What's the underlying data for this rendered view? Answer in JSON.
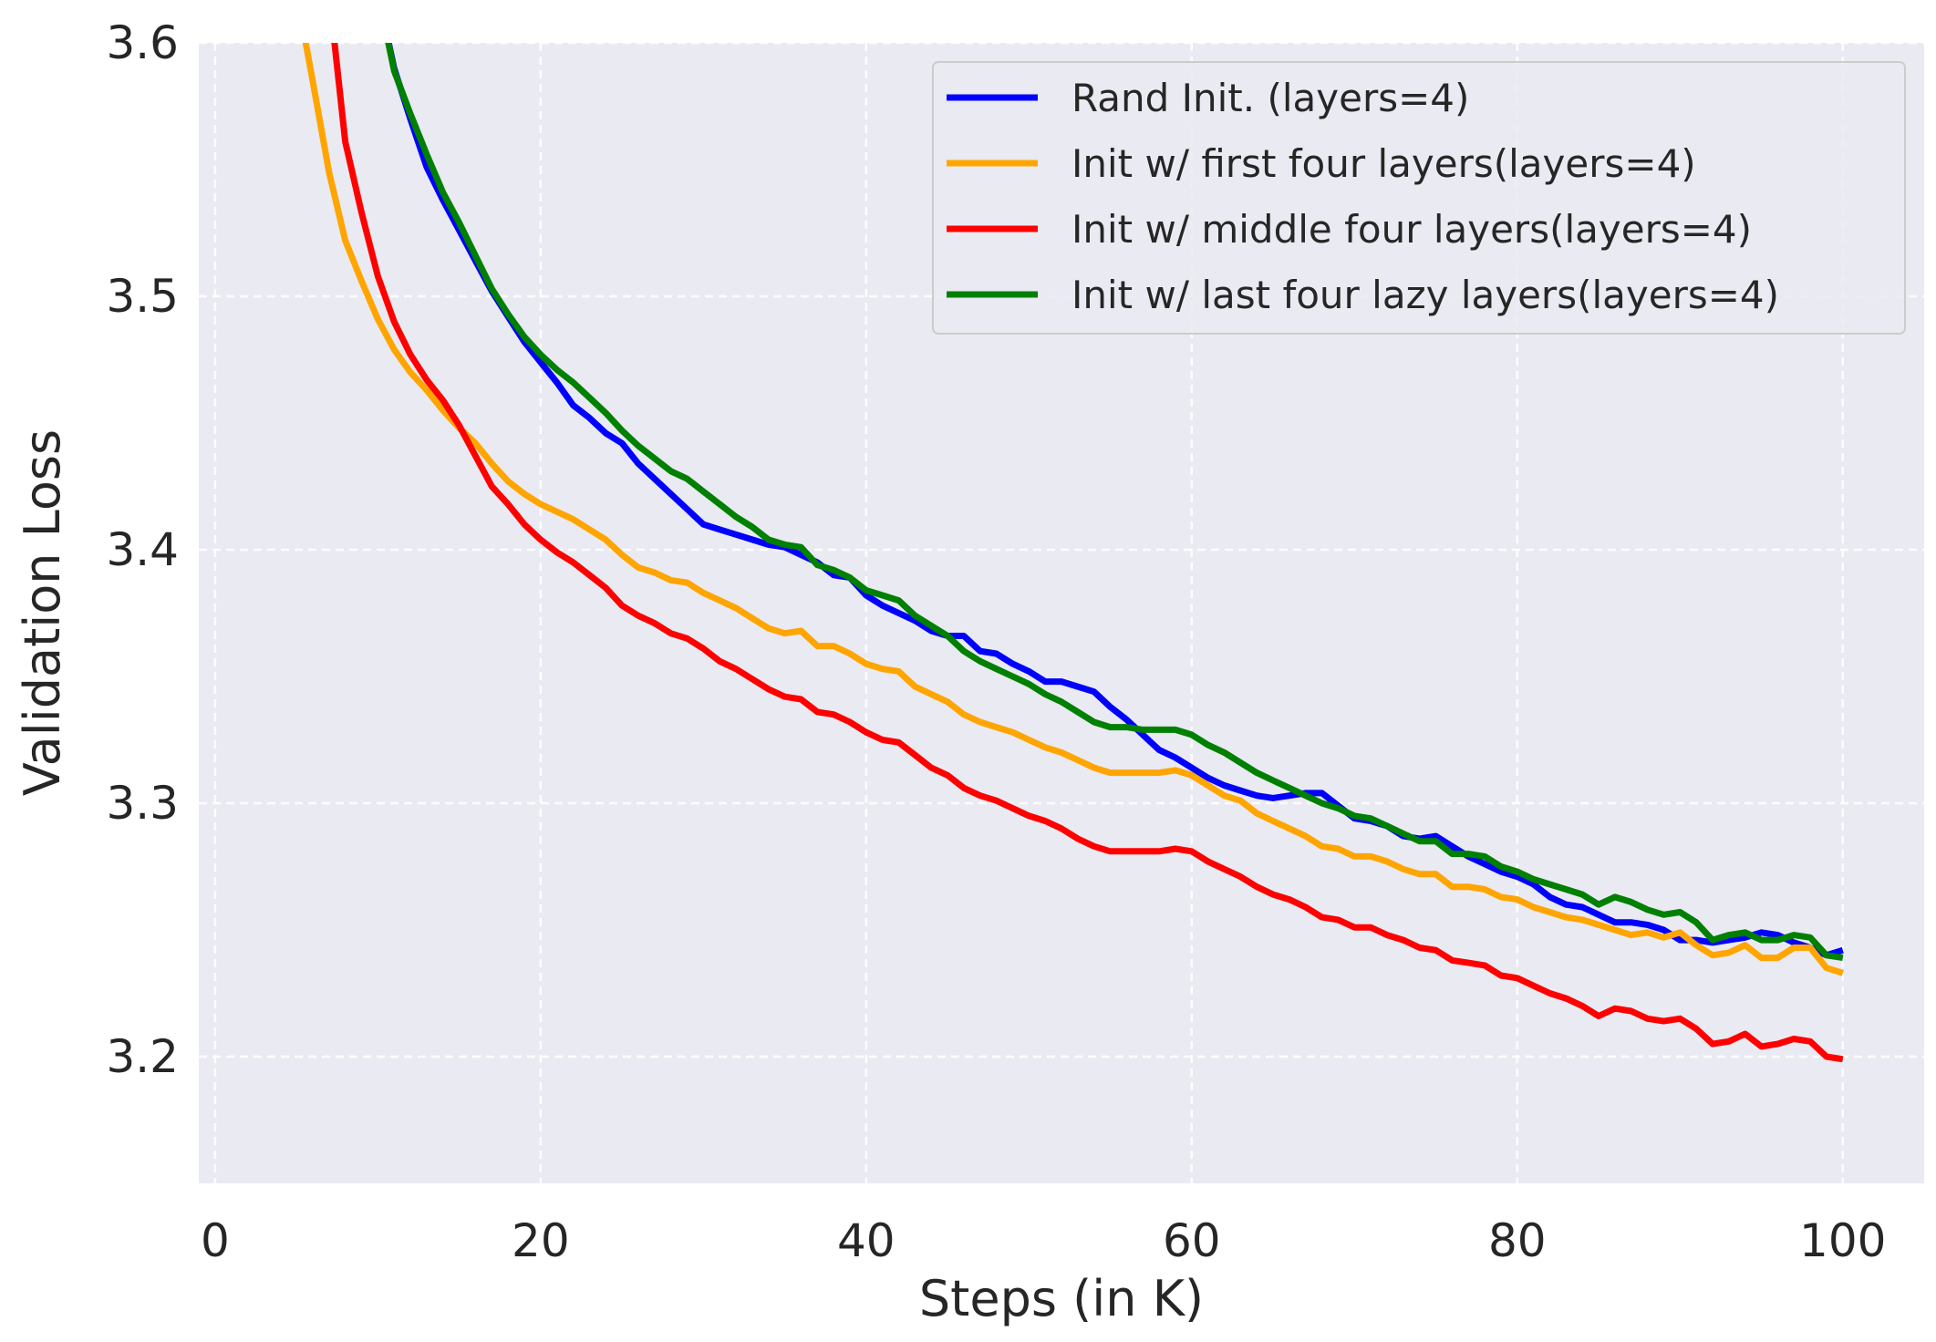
{
  "chart_data": {
    "type": "line",
    "xlabel": "Steps (in K)",
    "ylabel": "Validation Loss",
    "xlim": [
      -1,
      105
    ],
    "ylim": [
      3.15,
      3.6
    ],
    "xticks": [
      0,
      20,
      40,
      60,
      80,
      100
    ],
    "xtick_labels": [
      "0",
      "20",
      "40",
      "60",
      "80",
      "100"
    ],
    "yticks": [
      3.2,
      3.3,
      3.4,
      3.5,
      3.6
    ],
    "ytick_labels": [
      "3.2",
      "3.3",
      "3.4",
      "3.5",
      "3.6"
    ],
    "grid": true,
    "legend_position": "top-right",
    "background_color": "#eaeaf2",
    "series": [
      {
        "name": "Rand Init. (layers=4)",
        "color": "#0000ff",
        "x": [
          10,
          11,
          12,
          13,
          14,
          15,
          16,
          17,
          18,
          19,
          20,
          21,
          22,
          23,
          24,
          25,
          26,
          27,
          28,
          29,
          30,
          31,
          32,
          33,
          34,
          35,
          36,
          37,
          38,
          39,
          40,
          41,
          42,
          43,
          44,
          45,
          46,
          47,
          48,
          49,
          50,
          51,
          52,
          53,
          54,
          55,
          56,
          57,
          58,
          59,
          60,
          61,
          62,
          63,
          64,
          65,
          66,
          67,
          68,
          69,
          70,
          71,
          72,
          73,
          74,
          75,
          76,
          77,
          78,
          79,
          80,
          81,
          82,
          83,
          84,
          85,
          86,
          87,
          88,
          89,
          90,
          91,
          92,
          93,
          94,
          95,
          96,
          97,
          98,
          99,
          100
        ],
        "y": [
          3.62,
          3.59,
          3.57,
          3.551,
          3.538,
          3.526,
          3.514,
          3.502,
          3.492,
          3.482,
          3.474,
          3.466,
          3.457,
          3.452,
          3.446,
          3.442,
          3.434,
          3.428,
          3.422,
          3.416,
          3.41,
          3.408,
          3.406,
          3.404,
          3.402,
          3.401,
          3.398,
          3.395,
          3.39,
          3.389,
          3.382,
          3.378,
          3.375,
          3.372,
          3.368,
          3.366,
          3.366,
          3.36,
          3.359,
          3.355,
          3.352,
          3.348,
          3.348,
          3.346,
          3.344,
          3.338,
          3.333,
          3.327,
          3.321,
          3.318,
          3.314,
          3.31,
          3.307,
          3.305,
          3.303,
          3.302,
          3.303,
          3.304,
          3.304,
          3.299,
          3.294,
          3.293,
          3.291,
          3.287,
          3.286,
          3.287,
          3.283,
          3.279,
          3.276,
          3.273,
          3.271,
          3.268,
          3.263,
          3.26,
          3.259,
          3.256,
          3.253,
          3.253,
          3.252,
          3.25,
          3.246,
          3.246,
          3.245,
          3.246,
          3.247,
          3.249,
          3.248,
          3.245,
          3.243,
          3.24,
          3.242
        ]
      },
      {
        "name": "Init w/ first four layers(layers=4)",
        "color": "#ffa500",
        "x": [
          5,
          6,
          7,
          8,
          9,
          10,
          11,
          12,
          13,
          14,
          15,
          16,
          17,
          18,
          19,
          20,
          21,
          22,
          23,
          24,
          25,
          26,
          27,
          28,
          29,
          30,
          31,
          32,
          33,
          34,
          35,
          36,
          37,
          38,
          39,
          40,
          41,
          42,
          43,
          44,
          45,
          46,
          47,
          48,
          49,
          50,
          51,
          52,
          53,
          54,
          55,
          56,
          57,
          58,
          59,
          60,
          61,
          62,
          63,
          64,
          65,
          66,
          67,
          68,
          69,
          70,
          71,
          72,
          73,
          74,
          75,
          76,
          77,
          78,
          79,
          80,
          81,
          82,
          83,
          84,
          85,
          86,
          87,
          88,
          89,
          90,
          91,
          92,
          93,
          94,
          95,
          96,
          97,
          98,
          99,
          100
        ],
        "y": [
          3.62,
          3.585,
          3.549,
          3.522,
          3.506,
          3.491,
          3.479,
          3.47,
          3.463,
          3.455,
          3.448,
          3.442,
          3.434,
          3.427,
          3.422,
          3.418,
          3.415,
          3.412,
          3.408,
          3.404,
          3.398,
          3.393,
          3.391,
          3.388,
          3.387,
          3.383,
          3.38,
          3.377,
          3.373,
          3.369,
          3.367,
          3.368,
          3.362,
          3.362,
          3.359,
          3.355,
          3.353,
          3.352,
          3.346,
          3.343,
          3.34,
          3.335,
          3.332,
          3.33,
          3.328,
          3.325,
          3.322,
          3.32,
          3.317,
          3.314,
          3.312,
          3.312,
          3.312,
          3.312,
          3.313,
          3.311,
          3.307,
          3.303,
          3.301,
          3.296,
          3.293,
          3.29,
          3.287,
          3.283,
          3.282,
          3.279,
          3.279,
          3.277,
          3.274,
          3.272,
          3.272,
          3.267,
          3.267,
          3.266,
          3.263,
          3.262,
          3.259,
          3.257,
          3.255,
          3.254,
          3.252,
          3.25,
          3.248,
          3.249,
          3.247,
          3.249,
          3.244,
          3.24,
          3.241,
          3.244,
          3.239,
          3.239,
          3.243,
          3.243,
          3.235,
          3.233
        ]
      },
      {
        "name": "Init w/ middle four layers(layers=4)",
        "color": "#ff0000",
        "x": [
          7,
          8,
          9,
          10,
          11,
          12,
          13,
          14,
          15,
          16,
          17,
          18,
          19,
          20,
          21,
          22,
          23,
          24,
          25,
          26,
          27,
          28,
          29,
          30,
          31,
          32,
          33,
          34,
          35,
          36,
          37,
          38,
          39,
          40,
          41,
          42,
          43,
          44,
          45,
          46,
          47,
          48,
          49,
          50,
          51,
          52,
          53,
          54,
          55,
          56,
          57,
          58,
          59,
          60,
          61,
          62,
          63,
          64,
          65,
          66,
          67,
          68,
          69,
          70,
          71,
          72,
          73,
          74,
          75,
          76,
          77,
          78,
          79,
          80,
          81,
          82,
          83,
          84,
          85,
          86,
          87,
          88,
          89,
          90,
          91,
          92,
          93,
          94,
          95,
          96,
          97,
          98,
          99,
          100
        ],
        "y": [
          3.62,
          3.561,
          3.533,
          3.508,
          3.49,
          3.477,
          3.467,
          3.459,
          3.449,
          3.437,
          3.425,
          3.418,
          3.41,
          3.404,
          3.399,
          3.395,
          3.39,
          3.385,
          3.378,
          3.374,
          3.371,
          3.367,
          3.365,
          3.361,
          3.356,
          3.353,
          3.349,
          3.345,
          3.342,
          3.341,
          3.336,
          3.335,
          3.332,
          3.328,
          3.325,
          3.324,
          3.319,
          3.314,
          3.311,
          3.306,
          3.303,
          3.301,
          3.298,
          3.295,
          3.293,
          3.29,
          3.286,
          3.283,
          3.281,
          3.281,
          3.281,
          3.281,
          3.282,
          3.281,
          3.277,
          3.274,
          3.271,
          3.267,
          3.264,
          3.262,
          3.259,
          3.255,
          3.254,
          3.251,
          3.251,
          3.248,
          3.246,
          3.243,
          3.242,
          3.238,
          3.237,
          3.236,
          3.232,
          3.231,
          3.228,
          3.225,
          3.223,
          3.22,
          3.216,
          3.219,
          3.218,
          3.215,
          3.214,
          3.215,
          3.211,
          3.205,
          3.206,
          3.209,
          3.204,
          3.205,
          3.207,
          3.206,
          3.2,
          3.199
        ]
      },
      {
        "name": "Init w/ last four lazy layers(layers=4)",
        "color": "#008000",
        "x": [
          10,
          11,
          12,
          13,
          14,
          15,
          16,
          17,
          18,
          19,
          20,
          21,
          22,
          23,
          24,
          25,
          26,
          27,
          28,
          29,
          30,
          31,
          32,
          33,
          34,
          35,
          36,
          37,
          38,
          39,
          40,
          41,
          42,
          43,
          44,
          45,
          46,
          47,
          48,
          49,
          50,
          51,
          52,
          53,
          54,
          55,
          56,
          57,
          58,
          59,
          60,
          61,
          62,
          63,
          64,
          65,
          66,
          67,
          68,
          69,
          70,
          71,
          72,
          73,
          74,
          75,
          76,
          77,
          78,
          79,
          80,
          81,
          82,
          83,
          84,
          85,
          86,
          87,
          88,
          89,
          90,
          91,
          92,
          93,
          94,
          95,
          96,
          97,
          98,
          99,
          100
        ],
        "y": [
          3.62,
          3.589,
          3.572,
          3.556,
          3.541,
          3.529,
          3.516,
          3.503,
          3.493,
          3.484,
          3.477,
          3.471,
          3.466,
          3.46,
          3.454,
          3.447,
          3.441,
          3.436,
          3.431,
          3.428,
          3.423,
          3.418,
          3.413,
          3.409,
          3.404,
          3.402,
          3.401,
          3.394,
          3.392,
          3.389,
          3.384,
          3.382,
          3.38,
          3.374,
          3.37,
          3.366,
          3.36,
          3.356,
          3.353,
          3.35,
          3.347,
          3.343,
          3.34,
          3.336,
          3.332,
          3.33,
          3.33,
          3.329,
          3.329,
          3.329,
          3.327,
          3.323,
          3.32,
          3.316,
          3.312,
          3.309,
          3.306,
          3.303,
          3.3,
          3.298,
          3.295,
          3.294,
          3.291,
          3.288,
          3.285,
          3.285,
          3.28,
          3.28,
          3.279,
          3.275,
          3.273,
          3.27,
          3.268,
          3.266,
          3.264,
          3.26,
          3.263,
          3.261,
          3.258,
          3.256,
          3.257,
          3.253,
          3.246,
          3.248,
          3.249,
          3.246,
          3.246,
          3.248,
          3.247,
          3.24,
          3.239
        ]
      }
    ]
  }
}
